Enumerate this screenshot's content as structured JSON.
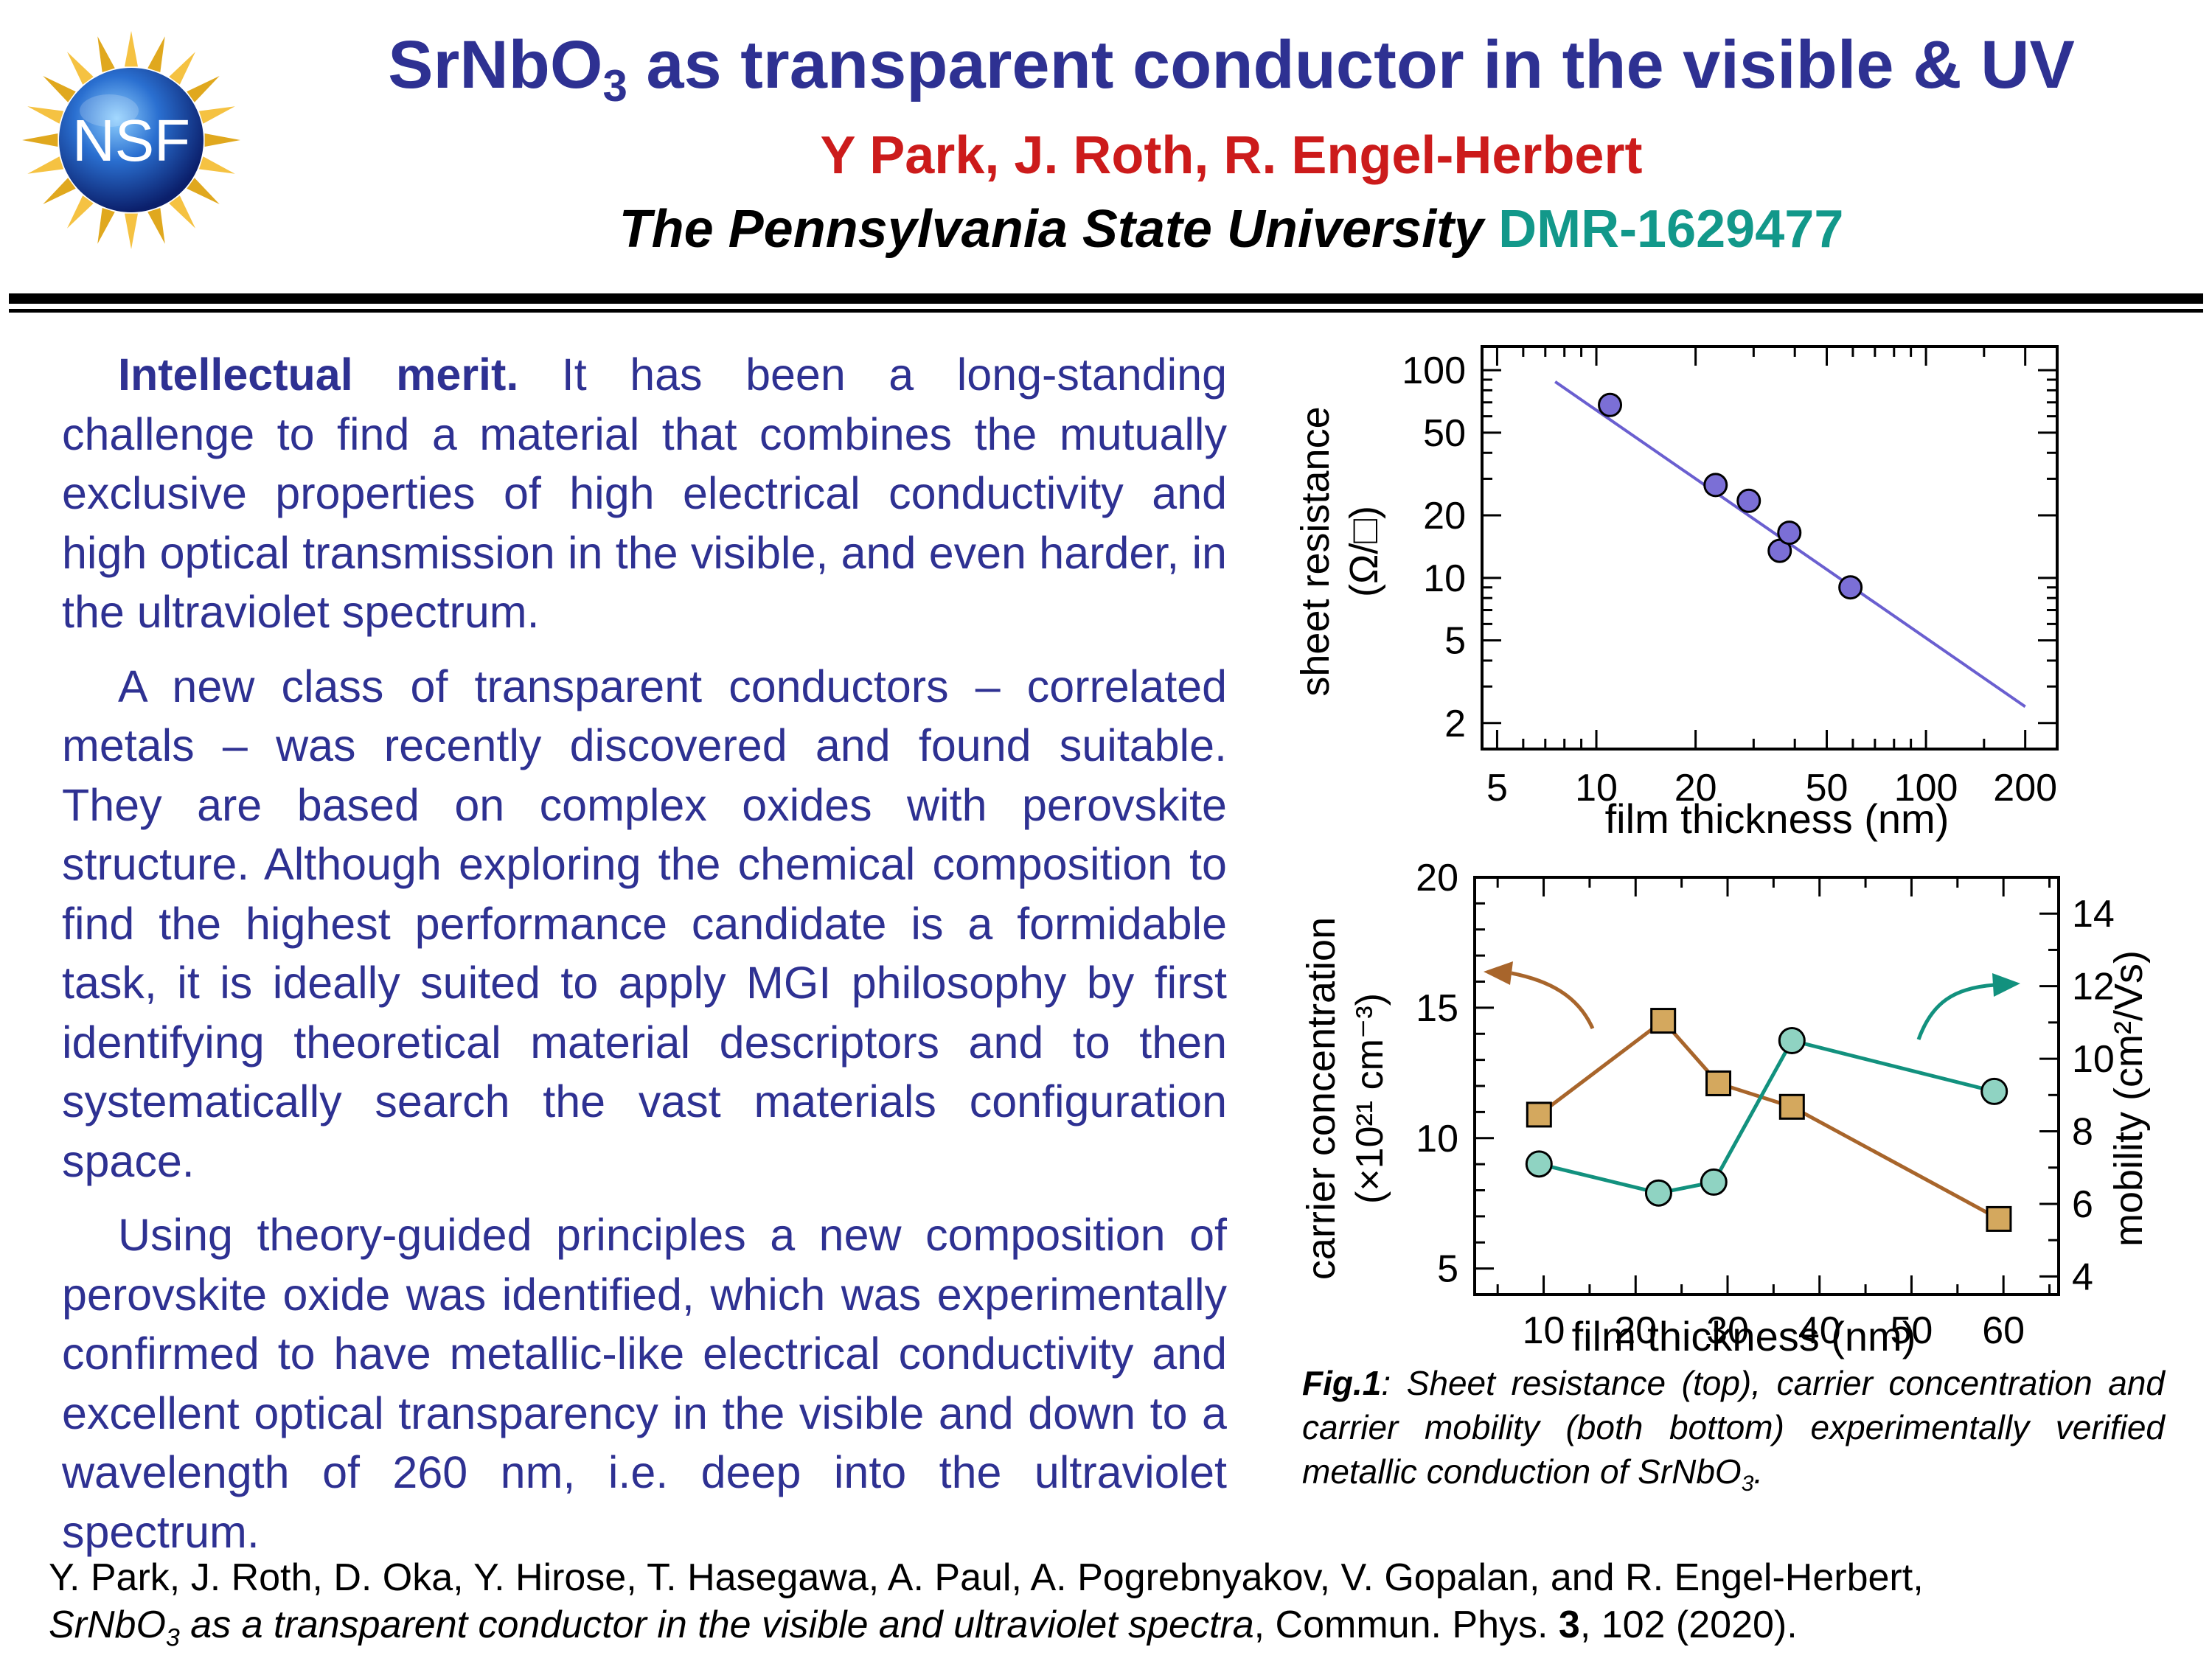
{
  "header": {
    "logo_text": "NSF",
    "title_main": "SrNbO",
    "title_sub": "3",
    "title_rest": " as transparent conductor in the visible & UV",
    "authors": "Y Park, J. Roth, R. Engel-Herbert",
    "university": "The Pennsylvania State University",
    "award": "DMR-1629477"
  },
  "body": {
    "p1_lead": "Intellectual merit.",
    "p1_text": " It has been a long-standing challenge to find a material that combines the mutually exclusive properties of high electrical conductivity and high optical transmission in the visible, and even harder, in the ultraviolet spectrum.",
    "p2_text": "A new class of transparent conductors – correlated metals – was recently discovered and found suitable. They are based on complex oxides with perovskite structure. Although exploring the chemical composition to find the highest performance candidate is a formidable task, it is ideally suited to apply MGI philosophy by first identifying theoretical material descriptors and to then systematically search the vast materials configuration space.",
    "p3_text": "Using theory-guided principles a new composition of perovskite oxide was identified, which was experimentally confirmed to have metallic-like electrical conductivity and excellent optical transparency in the visible and down to a wavelength of 260 nm, i.e. deep into the ultraviolet spectrum."
  },
  "caption": {
    "label": "Fig.1",
    "text_a": ": Sheet resistance (top), carrier concentration and carrier mobility (both bottom) experimentally verified metallic conduction of SrNbO",
    "text_sub": "3",
    "text_b": "."
  },
  "reference": {
    "authors": "Y. Park, J. Roth, D. Oka, Y. Hirose, T. Hasegawa, A. Paul, A. Pogrebnyakov, V. Gopalan, and R. Engel-Herbert,",
    "title_a": "SrNbO",
    "title_sub": "3",
    "title_b": " as a transparent conductor in the visible and ultraviolet spectra",
    "journal": ", Commun. Phys. ",
    "volume": "3",
    "pages": ", 102 (2020)."
  },
  "colors": {
    "title": "#2e3192",
    "authors": "#cc1b1b",
    "award": "#12988a",
    "points_top": "#7b6fd6",
    "fit_line": "#6a5fd0",
    "carrier": "#a8652b",
    "carrier_fill": "#d4a85e",
    "mobility": "#12917e",
    "mobility_fill": "#8fd3c2"
  },
  "chart_data": [
    {
      "type": "scatter",
      "xlabel": "film thickness (nm)",
      "ylabel_line1": "sheet resistance",
      "ylabel_line2": "(Ω/□)",
      "x_scale": "log",
      "y_scale": "log",
      "xlim": [
        4.5,
        250
      ],
      "ylim": [
        1.5,
        130
      ],
      "x_ticks": [
        {
          "v": 5,
          "label": "5"
        },
        {
          "v": 10,
          "label": "10"
        },
        {
          "v": 20,
          "label": "20"
        },
        {
          "v": 50,
          "label": "50"
        },
        {
          "v": 100,
          "label": "100"
        },
        {
          "v": 200,
          "label": "200"
        }
      ],
      "y_ticks": [
        {
          "v": 2,
          "label": "2"
        },
        {
          "v": 5,
          "label": "5"
        },
        {
          "v": 10,
          "label": "10"
        },
        {
          "v": 20,
          "label": "20"
        },
        {
          "v": 50,
          "label": "50"
        },
        {
          "v": 100,
          "label": "100"
        }
      ],
      "points": [
        {
          "x": 11,
          "y": 68
        },
        {
          "x": 23,
          "y": 28
        },
        {
          "x": 29,
          "y": 23.5
        },
        {
          "x": 36,
          "y": 13.5
        },
        {
          "x": 38.5,
          "y": 16.5
        },
        {
          "x": 59,
          "y": 9
        }
      ],
      "fit_line": [
        {
          "x": 7.5,
          "y": 88
        },
        {
          "x": 200,
          "y": 2.4
        }
      ]
    },
    {
      "type": "line",
      "xlabel": "film thickness (nm)",
      "ylabel_left_line1": "carrier concentration",
      "ylabel_left_line2": "(×10²¹ cm⁻³)",
      "ylabel_right": "mobility (cm²/Vs)",
      "xlim": [
        2.5,
        66
      ],
      "ylim_left": [
        4,
        20
      ],
      "ylim_right": [
        3.5,
        15
      ],
      "x_ticks": [
        {
          "v": 10,
          "label": "10"
        },
        {
          "v": 20,
          "label": "20"
        },
        {
          "v": 30,
          "label": "30"
        },
        {
          "v": 40,
          "label": "40"
        },
        {
          "v": 50,
          "label": "50"
        },
        {
          "v": 60,
          "label": "60"
        }
      ],
      "y_left_ticks": [
        {
          "v": 5,
          "label": "5"
        },
        {
          "v": 10,
          "label": "10"
        },
        {
          "v": 15,
          "label": "15"
        },
        {
          "v": 20,
          "label": "20"
        }
      ],
      "y_right_ticks": [
        {
          "v": 4,
          "label": "4"
        },
        {
          "v": 6,
          "label": "6"
        },
        {
          "v": 8,
          "label": "8"
        },
        {
          "v": 10,
          "label": "10"
        },
        {
          "v": 12,
          "label": "12"
        },
        {
          "v": 14,
          "label": "14"
        }
      ],
      "series": [
        {
          "axis": "left",
          "marker": "square",
          "x": [
            9.5,
            23,
            29,
            37,
            59.5
          ],
          "y": [
            10.9,
            14.5,
            12.1,
            11.2,
            6.9
          ]
        },
        {
          "axis": "right",
          "marker": "circle",
          "x": [
            9.5,
            22.5,
            28.5,
            37,
            59
          ],
          "y": [
            7.1,
            6.3,
            6.6,
            10.5,
            9.1
          ]
        }
      ]
    }
  ]
}
